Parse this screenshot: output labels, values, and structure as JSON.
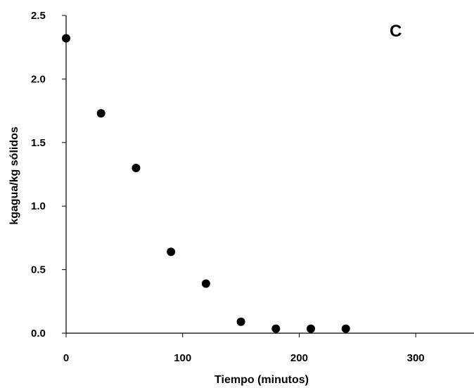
{
  "chart_data": {
    "type": "scatter",
    "panel_label": "C",
    "xlabel": "Tiempo (minutos)",
    "ylabel": "kgagua/kg sólidos",
    "xlim": [
      0,
      350
    ],
    "ylim": [
      0,
      2.5
    ],
    "xticks": [
      0,
      100,
      200,
      300
    ],
    "xtick_labels": [
      "0",
      "100",
      "200",
      "300"
    ],
    "yticks": [
      0,
      0.5,
      1.0,
      1.5,
      2.0,
      2.5
    ],
    "ytick_labels": [
      "0.0",
      "0.5",
      "1.0",
      "1.5",
      "2.0",
      "2.5"
    ],
    "grid": false,
    "marker_color": "#000000",
    "series": [
      {
        "x": [
          0,
          30,
          60,
          90,
          120,
          150,
          180,
          210,
          240
        ],
        "y": [
          2.32,
          1.73,
          1.3,
          0.64,
          0.39,
          0.09,
          0.035,
          0.035,
          0.035
        ]
      }
    ]
  }
}
